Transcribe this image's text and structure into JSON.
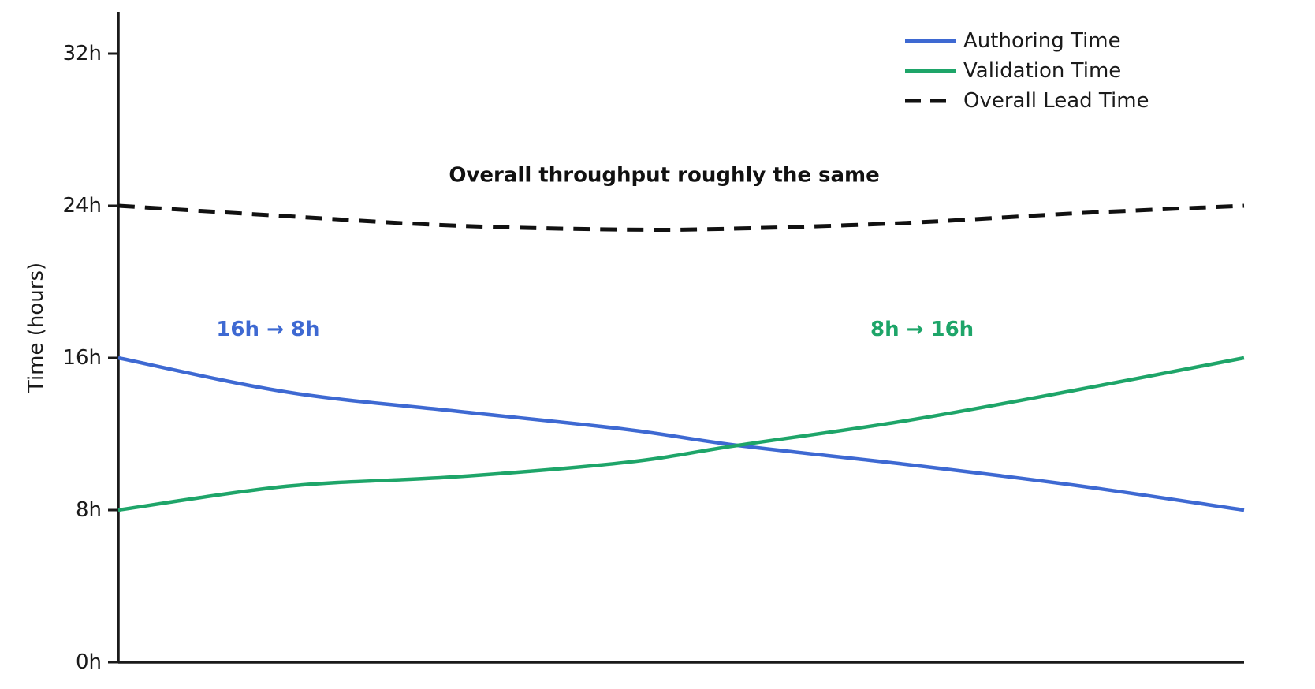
{
  "chart_data": {
    "type": "line",
    "title": "",
    "xlabel": "",
    "ylabel": "Time (hours)",
    "ylim": [
      0,
      32
    ],
    "xlim": [
      0,
      1
    ],
    "grid": false,
    "x_tick_labels": [],
    "yticks": [
      {
        "label": "0h",
        "hours": 0
      },
      {
        "label": "8h",
        "hours": 8
      },
      {
        "label": "16h",
        "hours": 16
      },
      {
        "label": "24h",
        "hours": 24
      },
      {
        "label": "32h",
        "hours": 32
      }
    ],
    "legend_position": "upper right",
    "x": [
      0,
      0.15,
      0.3,
      0.45,
      0.55,
      0.7,
      0.85,
      1.0
    ],
    "series": [
      {
        "name": "Authoring Time",
        "color": "#3E69D2",
        "style": "solid",
        "values": [
          16,
          14.2,
          13.2,
          12.25,
          11.4,
          10.4,
          9.3,
          8
        ]
      },
      {
        "name": "Validation Time",
        "color": "#1EA569",
        "style": "solid",
        "values": [
          8,
          9.25,
          9.75,
          10.5,
          11.4,
          12.7,
          14.3,
          16
        ]
      },
      {
        "name": "Overall Lead Time",
        "color": "#111111",
        "style": "dashed",
        "values": [
          24,
          23.45,
          22.95,
          22.75,
          22.8,
          23.1,
          23.6,
          24
        ]
      }
    ],
    "annotations": [
      {
        "id": "throughput-note",
        "text": "Overall throughput roughly the same",
        "color": "#111111",
        "bold": true,
        "x": 0.485,
        "hours": 25.6
      },
      {
        "id": "authoring-change-note",
        "text": "16h → 8h",
        "color": "#3E69D2",
        "bold": true,
        "x": 0.133,
        "hours": 17.5
      },
      {
        "id": "validation-change-note",
        "text": "8h → 16h",
        "color": "#1EA569",
        "bold": true,
        "x": 0.714,
        "hours": 17.5
      }
    ],
    "axis_color": "#1a1a1a",
    "background_color": "#ffffff"
  }
}
